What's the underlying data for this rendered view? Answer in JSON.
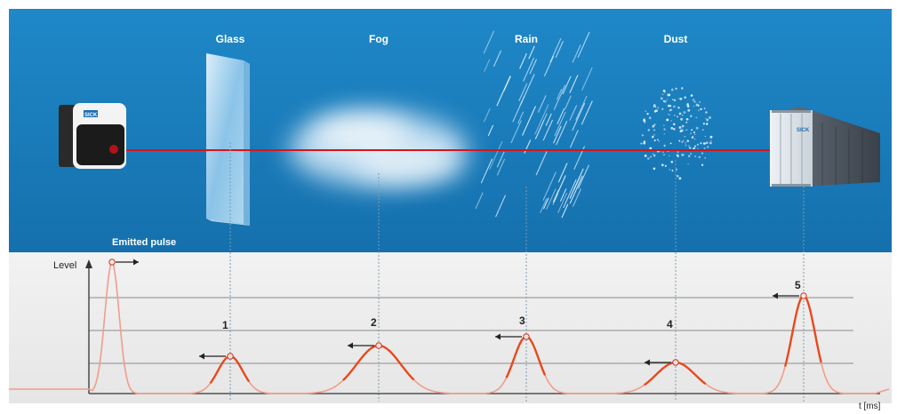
{
  "scene": {
    "obstacles": [
      "Glass",
      "Fog",
      "Rain",
      "Dust"
    ],
    "emitted_label": "Emitted pulse",
    "sensor_label": "SICK",
    "container_label": "SICK"
  },
  "chart": {
    "y_label": "Level",
    "x_label": "t [ms]",
    "echo_labels": [
      "1",
      "2",
      "3",
      "4",
      "5"
    ]
  },
  "colors": {
    "sky_top": "#1e86c6",
    "sky_bottom": "#1673b0",
    "panel": "#ececec",
    "laser": "#d8141b",
    "curve": "#f0a08c",
    "echo": "#e8491d",
    "arrow": "#222222"
  },
  "icons": {
    "sensor": "laser-scanner-icon",
    "container": "shipping-container-icon"
  }
}
